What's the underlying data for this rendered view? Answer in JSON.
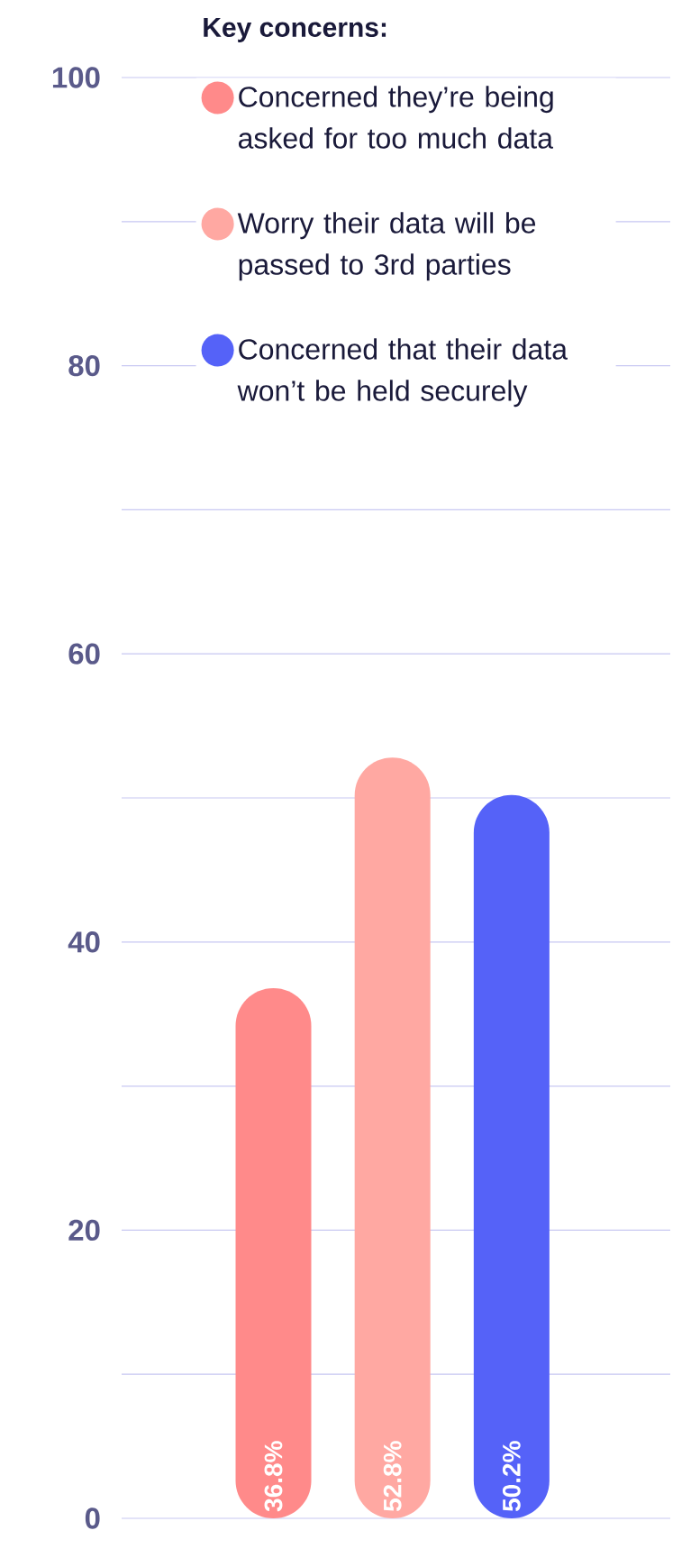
{
  "chart_data": {
    "type": "bar",
    "legend_title": "Key concerns:",
    "categories": [
      null,
      null,
      null
    ],
    "series": [
      {
        "name": "Concerned they’re being asked for too much data",
        "color": "#ff8a8a",
        "values": [
          36.8,
          null,
          null
        ],
        "value_labels": [
          "36.8%",
          null,
          null
        ]
      },
      {
        "name": "Worry their data will be passed to 3rd parties",
        "color": "#ffa8a2",
        "values": [
          null,
          52.8,
          null
        ],
        "value_labels": [
          null,
          "52.8%",
          null
        ]
      },
      {
        "name": "Concerned that their data won’t be held securely",
        "color": "#5562f8",
        "values": [
          null,
          null,
          50.2
        ],
        "value_labels": [
          null,
          null,
          "50.2%"
        ]
      }
    ],
    "ylim": [
      0,
      100
    ],
    "yticks": [
      0,
      {
        "value": 10,
        "label": null
      },
      20,
      {
        "value": 30,
        "label": null
      },
      40,
      {
        "value": 50,
        "label": null
      },
      60,
      {
        "value": 70,
        "label": null
      },
      80,
      {
        "value": 90,
        "label": null
      },
      100
    ],
    "grid": "y",
    "legend": "top right",
    "tick_labels": "y"
  }
}
